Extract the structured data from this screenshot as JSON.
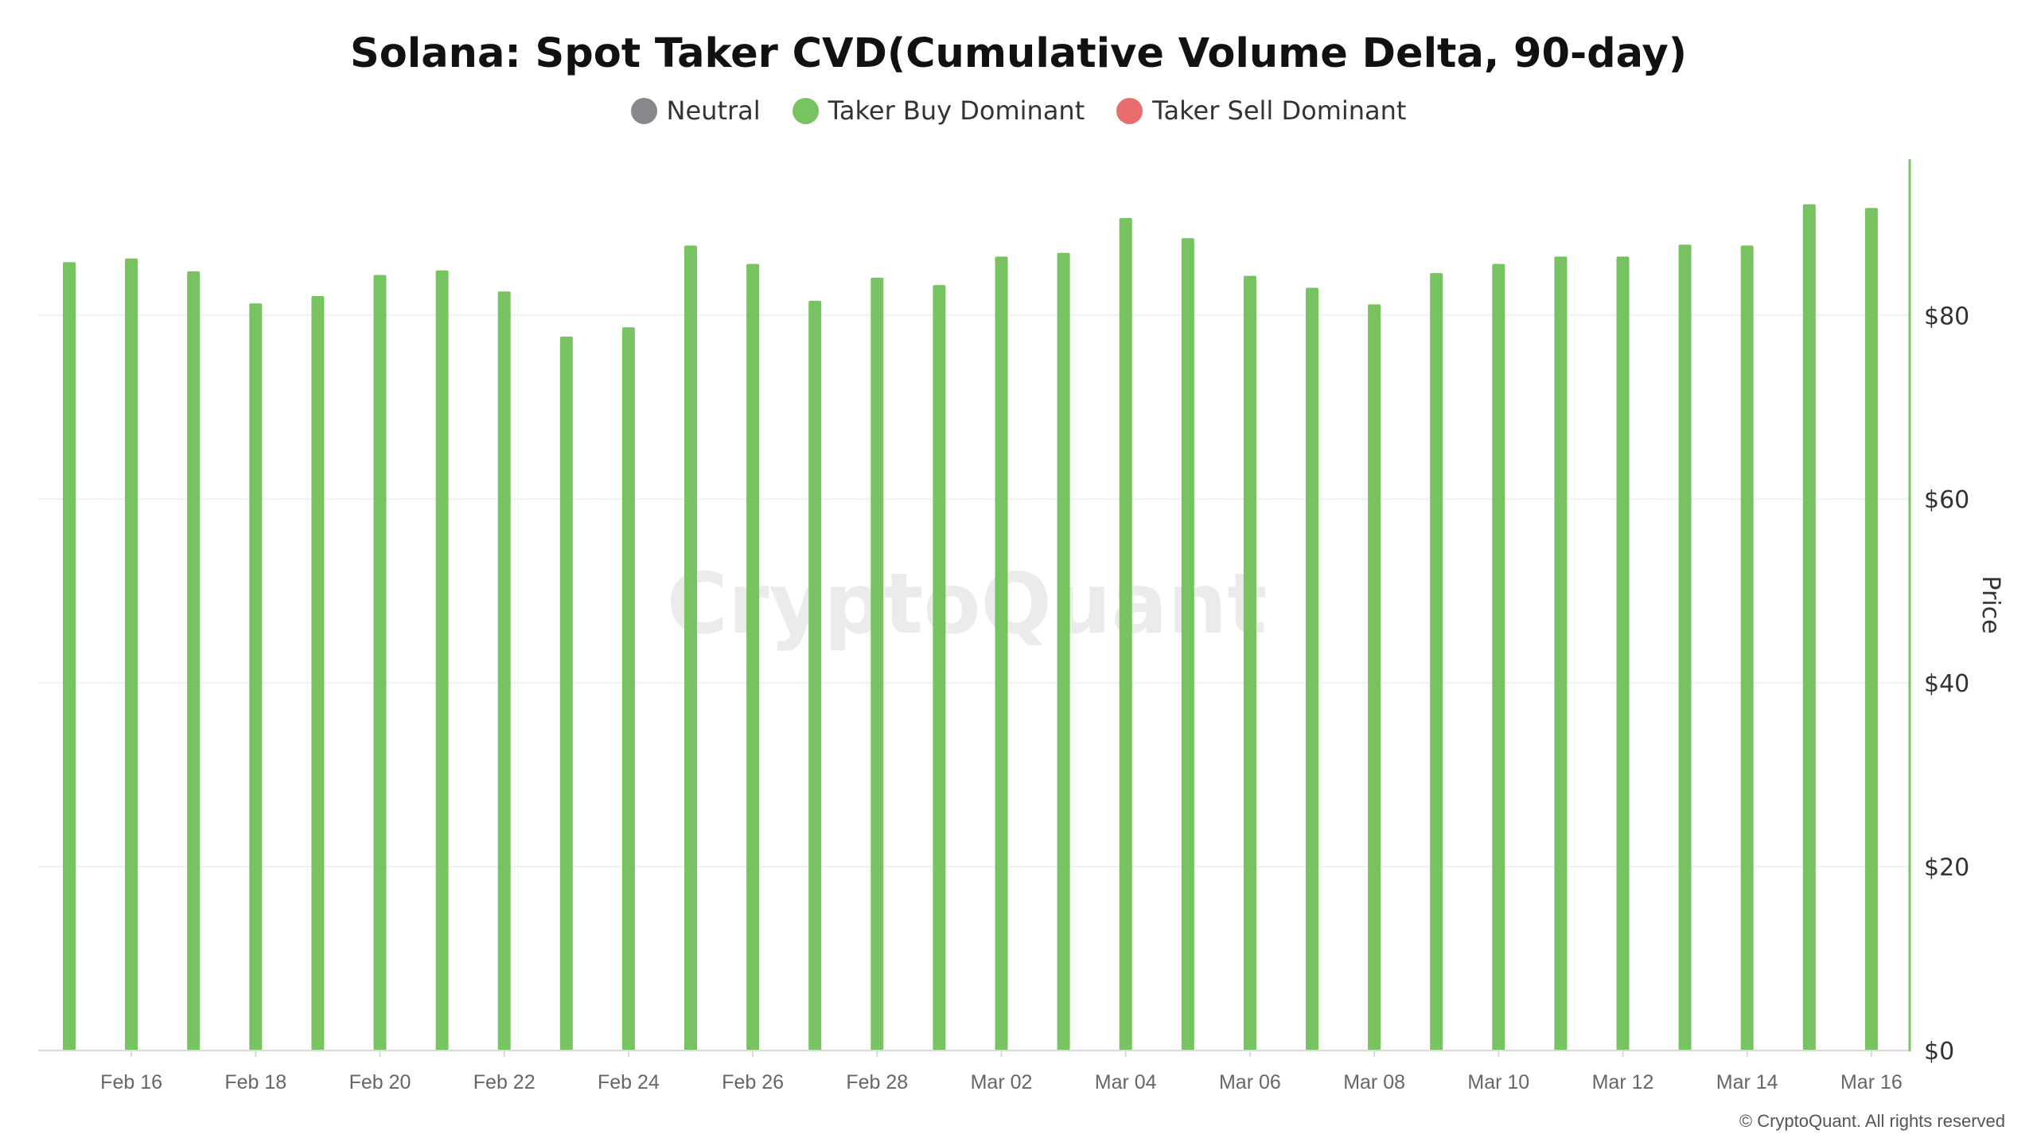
{
  "chart_data": {
    "type": "bar",
    "title": "Solana: Spot Taker CVD(Cumulative Volume Delta, 90-day)",
    "legend": [
      {
        "name": "Neutral",
        "color": "#87878c"
      },
      {
        "name": "Taker Buy Dominant",
        "color": "#77c361"
      },
      {
        "name": "Taker Sell Dominant",
        "color": "#e86e6e"
      }
    ],
    "legend_placement": "top-center",
    "x": [
      "Feb 15",
      "Feb 16",
      "Feb 17",
      "Feb 18",
      "Feb 19",
      "Feb 20",
      "Feb 21",
      "Feb 22",
      "Feb 23",
      "Feb 24",
      "Feb 25",
      "Feb 26",
      "Feb 27",
      "Feb 28",
      "Mar 01",
      "Mar 02",
      "Mar 03",
      "Mar 04",
      "Mar 05",
      "Mar 06",
      "Mar 07",
      "Mar 08",
      "Mar 09",
      "Mar 10",
      "Mar 11",
      "Mar 12",
      "Mar 13",
      "Mar 14",
      "Mar 15",
      "Mar 16"
    ],
    "x_tick_labels": [
      "Feb 16",
      "Feb 18",
      "Feb 20",
      "Feb 22",
      "Feb 24",
      "Feb 26",
      "Feb 28",
      "Mar 02",
      "Mar 04",
      "Mar 06",
      "Mar 08",
      "Mar 10",
      "Mar 12",
      "Mar 14",
      "Mar 16"
    ],
    "series": [
      {
        "name": "Taker Buy Dominant",
        "color": "#77c361",
        "values": [
          85.8,
          86.2,
          84.8,
          81.3,
          82.1,
          84.4,
          84.9,
          82.6,
          77.7,
          78.7,
          87.6,
          85.6,
          81.6,
          84.1,
          83.3,
          86.4,
          86.8,
          90.6,
          88.4,
          84.3,
          83.0,
          81.2,
          84.6,
          85.6,
          86.4,
          86.4,
          87.7,
          87.6,
          92.1,
          91.7
        ]
      }
    ],
    "category_state": [
      "Taker Buy Dominant",
      "Taker Buy Dominant",
      "Taker Buy Dominant",
      "Taker Buy Dominant",
      "Taker Buy Dominant",
      "Taker Buy Dominant",
      "Taker Buy Dominant",
      "Taker Buy Dominant",
      "Taker Buy Dominant",
      "Taker Buy Dominant",
      "Taker Buy Dominant",
      "Taker Buy Dominant",
      "Taker Buy Dominant",
      "Taker Buy Dominant",
      "Taker Buy Dominant",
      "Taker Buy Dominant",
      "Taker Buy Dominant",
      "Taker Buy Dominant",
      "Taker Buy Dominant",
      "Taker Buy Dominant",
      "Taker Buy Dominant",
      "Taker Buy Dominant",
      "Taker Buy Dominant",
      "Taker Buy Dominant",
      "Taker Buy Dominant",
      "Taker Buy Dominant",
      "Taker Buy Dominant",
      "Taker Buy Dominant",
      "Taker Buy Dominant",
      "Taker Buy Dominant"
    ],
    "ylabel": "Price",
    "ylim": [
      0,
      97
    ],
    "y_ticks": [
      0,
      20,
      40,
      60,
      80
    ],
    "y_tick_labels": [
      "$0",
      "$20",
      "$40",
      "$60",
      "$80"
    ],
    "y_axis_side": "right",
    "grid": true
  },
  "watermark": "CryptoQuant",
  "copyright": "© CryptoQuant. All rights reserved"
}
